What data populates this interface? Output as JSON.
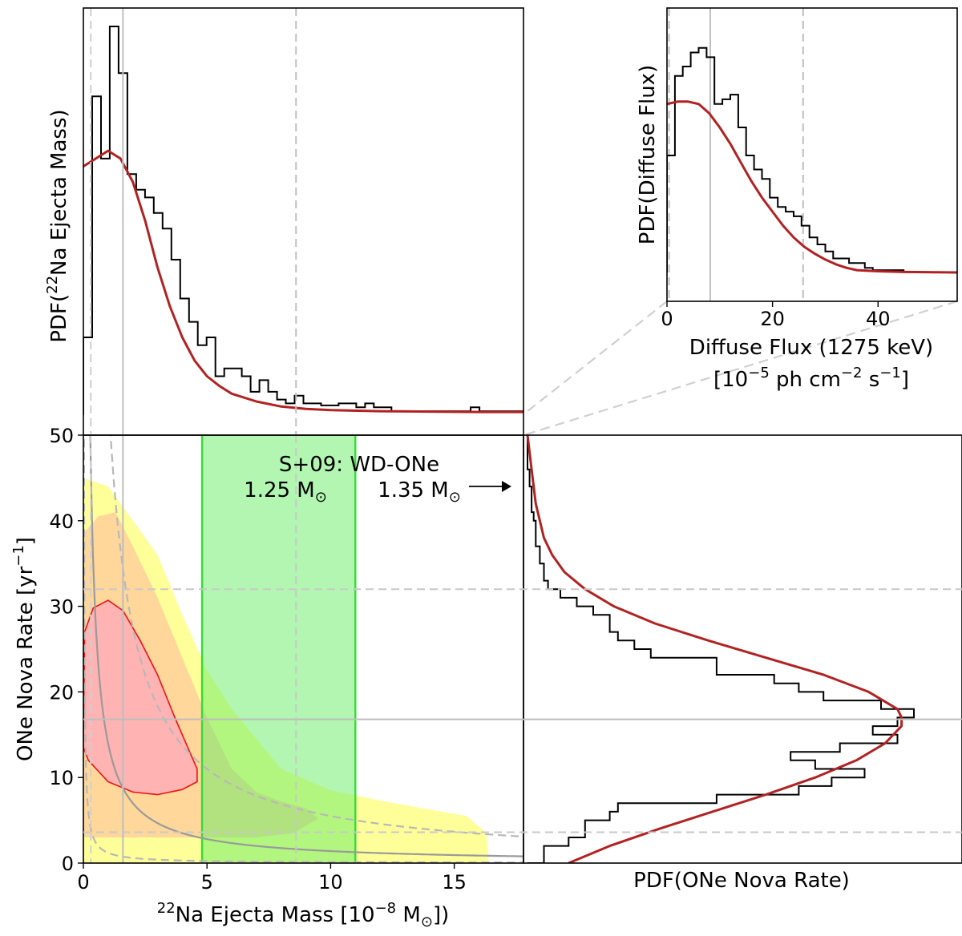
{
  "chart_data": [
    {
      "panel": "joint",
      "type": "contour",
      "xlabel": "²²Na Ejecta Mass [10⁻⁸ M⊙])",
      "ylabel": "ONe Nova Rate [yr⁻¹]",
      "xlim": [
        0,
        17.8
      ],
      "ylim": [
        0,
        50
      ],
      "xticks": [
        "0",
        "5",
        "10",
        "15"
      ],
      "yticks": [
        "0",
        "10",
        "20",
        "30",
        "40",
        "50"
      ],
      "band": {
        "x0": 4.8,
        "x1": 11.0,
        "color": "#b3f7b0",
        "edge": "#33dd33"
      },
      "annotation": {
        "title": "S+09: WD-ONe",
        "left_label": "1.25 M⊙",
        "right_label": "1.35 M⊙"
      },
      "ref_lines": {
        "x_median": 1.6,
        "x_upper": 8.6,
        "y_median": 16.8,
        "y_lower": 3.6,
        "y_upper": 32.0
      },
      "contours": [
        {
          "level": "outer",
          "color": "#ffff99",
          "points": [
            [
              0,
              45
            ],
            [
              1,
              44
            ],
            [
              2,
              40
            ],
            [
              3,
              36
            ],
            [
              4,
              29
            ],
            [
              5,
              22.5
            ],
            [
              6,
              18
            ],
            [
              7,
              14.5
            ],
            [
              8,
              11
            ],
            [
              10,
              8.5
            ],
            [
              12,
              7.3
            ],
            [
              13.7,
              6.4
            ],
            [
              14.5,
              6
            ],
            [
              15.5,
              5.5
            ],
            [
              16.3,
              3.5
            ],
            [
              16.4,
              0
            ],
            [
              0,
              0
            ]
          ]
        },
        {
          "level": "middle",
          "color": "#ffd79b",
          "points": [
            [
              0,
              38.5
            ],
            [
              0.6,
              40.5
            ],
            [
              1.3,
              41
            ],
            [
              2,
              37
            ],
            [
              3,
              31
            ],
            [
              4,
              24
            ],
            [
              5,
              17
            ],
            [
              6,
              11
            ],
            [
              7,
              8.3
            ],
            [
              8,
              7.2
            ],
            [
              9,
              6.4
            ],
            [
              9.5,
              5.2
            ],
            [
              8.5,
              3.5
            ],
            [
              7,
              3
            ],
            [
              5,
              3
            ],
            [
              3,
              3
            ],
            [
              1.5,
              3
            ],
            [
              0,
              3
            ]
          ]
        },
        {
          "level": "inner",
          "color": "#ffb3b3",
          "edge": "#ee1111",
          "points": [
            [
              0,
              13.5
            ],
            [
              0.05,
              27
            ],
            [
              0.4,
              29.8
            ],
            [
              1,
              30.7
            ],
            [
              1.6,
              29.5
            ],
            [
              2.3,
              26
            ],
            [
              3,
              22
            ],
            [
              3.7,
              17
            ],
            [
              4.3,
              13
            ],
            [
              4.6,
              11
            ],
            [
              4.6,
              9.5
            ],
            [
              4,
              8.6
            ],
            [
              3,
              8
            ],
            [
              2,
              8.3
            ],
            [
              1,
              9.5
            ],
            [
              0.2,
              12
            ],
            [
              0,
              13.5
            ]
          ]
        }
      ],
      "curves": [
        {
          "style": "solid-gray",
          "k": 14
        },
        {
          "style": "dashed-gray",
          "k": 55
        },
        {
          "style": "dashed-gray",
          "k": 1.2
        }
      ]
    },
    {
      "panel": "top-marginal",
      "type": "histogram+line",
      "ylabel": "PDF(²²Na Ejecta Mass)",
      "xlim": [
        0,
        17.8
      ],
      "hist_edges_step": 0.356,
      "hist_values": [
        0.2,
        0.82,
        0.66,
        1.0,
        0.88,
        0.62,
        0.58,
        0.56,
        0.52,
        0.48,
        0.4,
        0.3,
        0.24,
        0.18,
        0.2,
        0.1,
        0.12,
        0.12,
        0.1,
        0.06,
        0.09,
        0.06,
        0.04,
        0.03,
        0.05,
        0.03,
        0.03,
        0.025,
        0.025,
        0.03,
        0.03,
        0.02,
        0.03,
        0.02,
        0.02,
        0.01,
        0.01,
        0.01,
        0.01,
        0.01,
        0.01,
        0.01,
        0.01,
        0.01,
        0.02,
        0.01,
        0.01,
        0.01,
        0.01,
        0.01
      ],
      "curve_x": [
        0,
        0.5,
        1,
        1.5,
        2,
        2.5,
        3,
        3.5,
        4,
        4.5,
        5,
        5.5,
        6,
        7,
        8,
        9,
        10,
        12,
        14,
        16,
        17.8
      ],
      "curve_y": [
        0.64,
        0.66,
        0.68,
        0.66,
        0.6,
        0.5,
        0.38,
        0.28,
        0.2,
        0.14,
        0.1,
        0.075,
        0.055,
        0.035,
        0.022,
        0.016,
        0.013,
        0.01,
        0.009,
        0.008,
        0.008
      ],
      "ref_x": [
        1.6,
        8.6
      ],
      "ref_x_styles": [
        "solid",
        "dashed"
      ]
    },
    {
      "panel": "right-marginal",
      "type": "histogram+line",
      "xlabel": "PDF(ONe Nova Rate)",
      "ylim": [
        0,
        50
      ],
      "hist_edges_step": 1.0,
      "hist_values": [
        0.04,
        0.04,
        0.1,
        0.14,
        0.14,
        0.2,
        0.22,
        0.46,
        0.66,
        0.74,
        0.82,
        0.7,
        0.64,
        0.76,
        0.9,
        0.84,
        0.9,
        0.94,
        0.86,
        0.72,
        0.66,
        0.6,
        0.46,
        0.46,
        0.3,
        0.26,
        0.22,
        0.2,
        0.2,
        0.16,
        0.12,
        0.08,
        0.05,
        0.04,
        0.04,
        0.03,
        0.03,
        0.02,
        0.02,
        0.02,
        0.015,
        0.01,
        0.01,
        0.01,
        0.005,
        0.005,
        0.0,
        0.0,
        0.0,
        0.0
      ],
      "curve_y": [
        0,
        2,
        4,
        6,
        8,
        10,
        12,
        14,
        16,
        17,
        18,
        20,
        22,
        24,
        26,
        28,
        30,
        32,
        34,
        36,
        38,
        40,
        42,
        44,
        46,
        48,
        50
      ],
      "curve_x": [
        0.1,
        0.2,
        0.32,
        0.45,
        0.58,
        0.7,
        0.8,
        0.87,
        0.91,
        0.91,
        0.9,
        0.83,
        0.72,
        0.58,
        0.44,
        0.31,
        0.21,
        0.14,
        0.09,
        0.06,
        0.04,
        0.03,
        0.02,
        0.015,
        0.01,
        0.005,
        0.0
      ],
      "ref_y": [
        16.8,
        3.6,
        32.0
      ],
      "ref_y_styles": [
        "solid",
        "dashed",
        "dashed"
      ]
    },
    {
      "panel": "inset",
      "type": "histogram+line",
      "xlabel_line1": "Diffuse Flux (1275 keV)",
      "xlabel_line2": "[10⁻⁵ ph cm⁻² s⁻¹]",
      "ylabel": "PDF(Diffuse Flux)",
      "xlim": [
        0,
        55
      ],
      "xticks": [
        "0",
        "20",
        "40"
      ],
      "hist_edges_step": 1.5,
      "hist_values": [
        0.5,
        0.84,
        0.88,
        0.94,
        0.96,
        0.92,
        0.72,
        0.74,
        0.76,
        0.62,
        0.5,
        0.44,
        0.4,
        0.32,
        0.28,
        0.26,
        0.24,
        0.2,
        0.15,
        0.12,
        0.09,
        0.06,
        0.06,
        0.04,
        0.04,
        0.02,
        0.01,
        0.01,
        0.01,
        0.01
      ],
      "curve_x": [
        0,
        2,
        4,
        6,
        8,
        10,
        12,
        14,
        16,
        18,
        20,
        22,
        24,
        26,
        28,
        30,
        32,
        34,
        36,
        40,
        45,
        55
      ],
      "curve_y": [
        0.72,
        0.73,
        0.73,
        0.72,
        0.68,
        0.62,
        0.55,
        0.47,
        0.39,
        0.32,
        0.26,
        0.2,
        0.15,
        0.11,
        0.08,
        0.055,
        0.035,
        0.02,
        0.01,
        0.005,
        0.002,
        0.0
      ],
      "ref_x": [
        0.4,
        8.2,
        25.8
      ],
      "ref_x_styles": [
        "dashed",
        "solid",
        "dashed"
      ]
    }
  ]
}
